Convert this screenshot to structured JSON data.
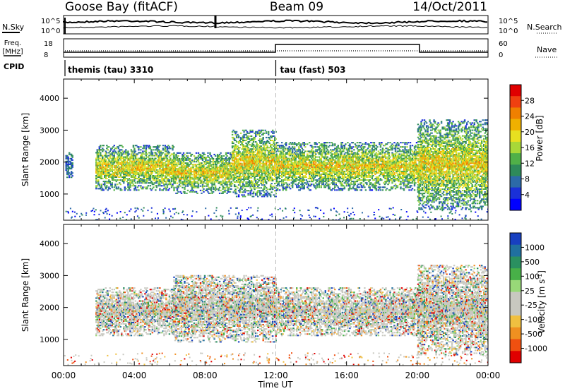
{
  "header": {
    "station": "Goose Bay (fitACF)",
    "beam": "Beam 09",
    "date": "14/Oct/2011"
  },
  "params": {
    "nsky_label": "N.Sky",
    "nsearch_label": "N.Search",
    "freq_label_line1": "Freq.",
    "freq_label_line2": "[MHz]",
    "nave_label": "Nave",
    "cpid_label": "CPID",
    "noise_left_ticks": [
      "10^5",
      "10^0"
    ],
    "noise_right_ticks": [
      "10^5",
      "10^0"
    ],
    "freq_left_ticks": [
      "18",
      "8"
    ],
    "nave_right_ticks": [
      "60",
      "0"
    ]
  },
  "cpid_segments": [
    {
      "label": "themis (tau) 3310",
      "start_hour": 0,
      "end_hour": 12
    },
    {
      "label": "tau (fast) 503",
      "start_hour": 12,
      "end_hour": 24
    }
  ],
  "chart_data": [
    {
      "type": "heatmap",
      "panel": "power",
      "xlabel": "",
      "ylabel": "Slant Range [km]",
      "xlim": [
        0,
        24
      ],
      "ylim": [
        180,
        4600
      ],
      "yticks": [
        1000,
        2000,
        3000,
        4000
      ],
      "xticks": [
        0,
        4,
        8,
        12,
        16,
        20,
        24
      ],
      "colorbar": {
        "label": "Power [dB]",
        "ticks": [
          "28",
          "24",
          "20",
          "16",
          "12",
          "8",
          "4"
        ],
        "colors": [
          "#e00000",
          "#f04010",
          "#f08000",
          "#f0b000",
          "#e8e020",
          "#a8d838",
          "#50b048",
          "#2e8a5a",
          "#2c6aa8",
          "#1a30d8",
          "#0000ff"
        ]
      },
      "echo_regions": [
        {
          "t_start": 0.1,
          "t_end": 0.5,
          "r_min": 1500,
          "r_max": 2300,
          "level": "weak"
        },
        {
          "t_start": 1.8,
          "t_end": 6.2,
          "r_min": 1100,
          "r_max": 2500,
          "level": "moderate-to-strong"
        },
        {
          "t_start": 6.2,
          "t_end": 9.5,
          "r_min": 1000,
          "r_max": 2300,
          "level": "moderate"
        },
        {
          "t_start": 9.5,
          "t_end": 12.0,
          "r_min": 900,
          "r_max": 3000,
          "level": "moderate-to-strong"
        },
        {
          "t_start": 12.0,
          "t_end": 20.0,
          "r_min": 1100,
          "r_max": 2600,
          "level": "moderate-to-strong"
        },
        {
          "t_start": 20.0,
          "t_end": 24.0,
          "r_min": 500,
          "r_max": 3300,
          "level": "moderate-to-strong"
        }
      ]
    },
    {
      "type": "heatmap",
      "panel": "velocity",
      "xlabel": "Time UT",
      "ylabel": "Slant Range [km]",
      "xlim": [
        0,
        24
      ],
      "ylim": [
        180,
        4600
      ],
      "yticks": [
        1000,
        2000,
        3000,
        4000
      ],
      "xticks": [
        0,
        4,
        8,
        12,
        16,
        20,
        24
      ],
      "xticklabels": [
        "00:00",
        "04:00",
        "08:00",
        "12:00",
        "16:00",
        "20:00",
        "00:00"
      ],
      "colorbar": {
        "label": "Velocity [m s^-1]",
        "ticks": [
          "1000",
          "500",
          "100",
          "25",
          "-25",
          "-100",
          "-500",
          "-1000"
        ],
        "colors": [
          "#1840c0",
          "#2070a0",
          "#2a9060",
          "#48b048",
          "#98d878",
          "#c8c8c0",
          "#c8c8c0",
          "#f0c040",
          "#f09020",
          "#f05010",
          "#e00000"
        ]
      },
      "echo_regions": [
        {
          "t_start": 1.8,
          "t_end": 6.2,
          "r_min": 1100,
          "r_max": 2600,
          "mixed": "ground scatter with green (positive) and orange (negative) velocities"
        },
        {
          "t_start": 6.2,
          "t_end": 12.0,
          "r_min": 900,
          "r_max": 3000,
          "mixed": "mostly ground scatter with orange patches"
        },
        {
          "t_start": 12.0,
          "t_end": 20.0,
          "r_min": 1100,
          "r_max": 2600,
          "mixed": "mostly ground scatter (grey)"
        },
        {
          "t_start": 20.0,
          "t_end": 24.0,
          "r_min": 500,
          "r_max": 3300,
          "mixed": "green (positive) velocities with orange patches"
        }
      ]
    }
  ]
}
